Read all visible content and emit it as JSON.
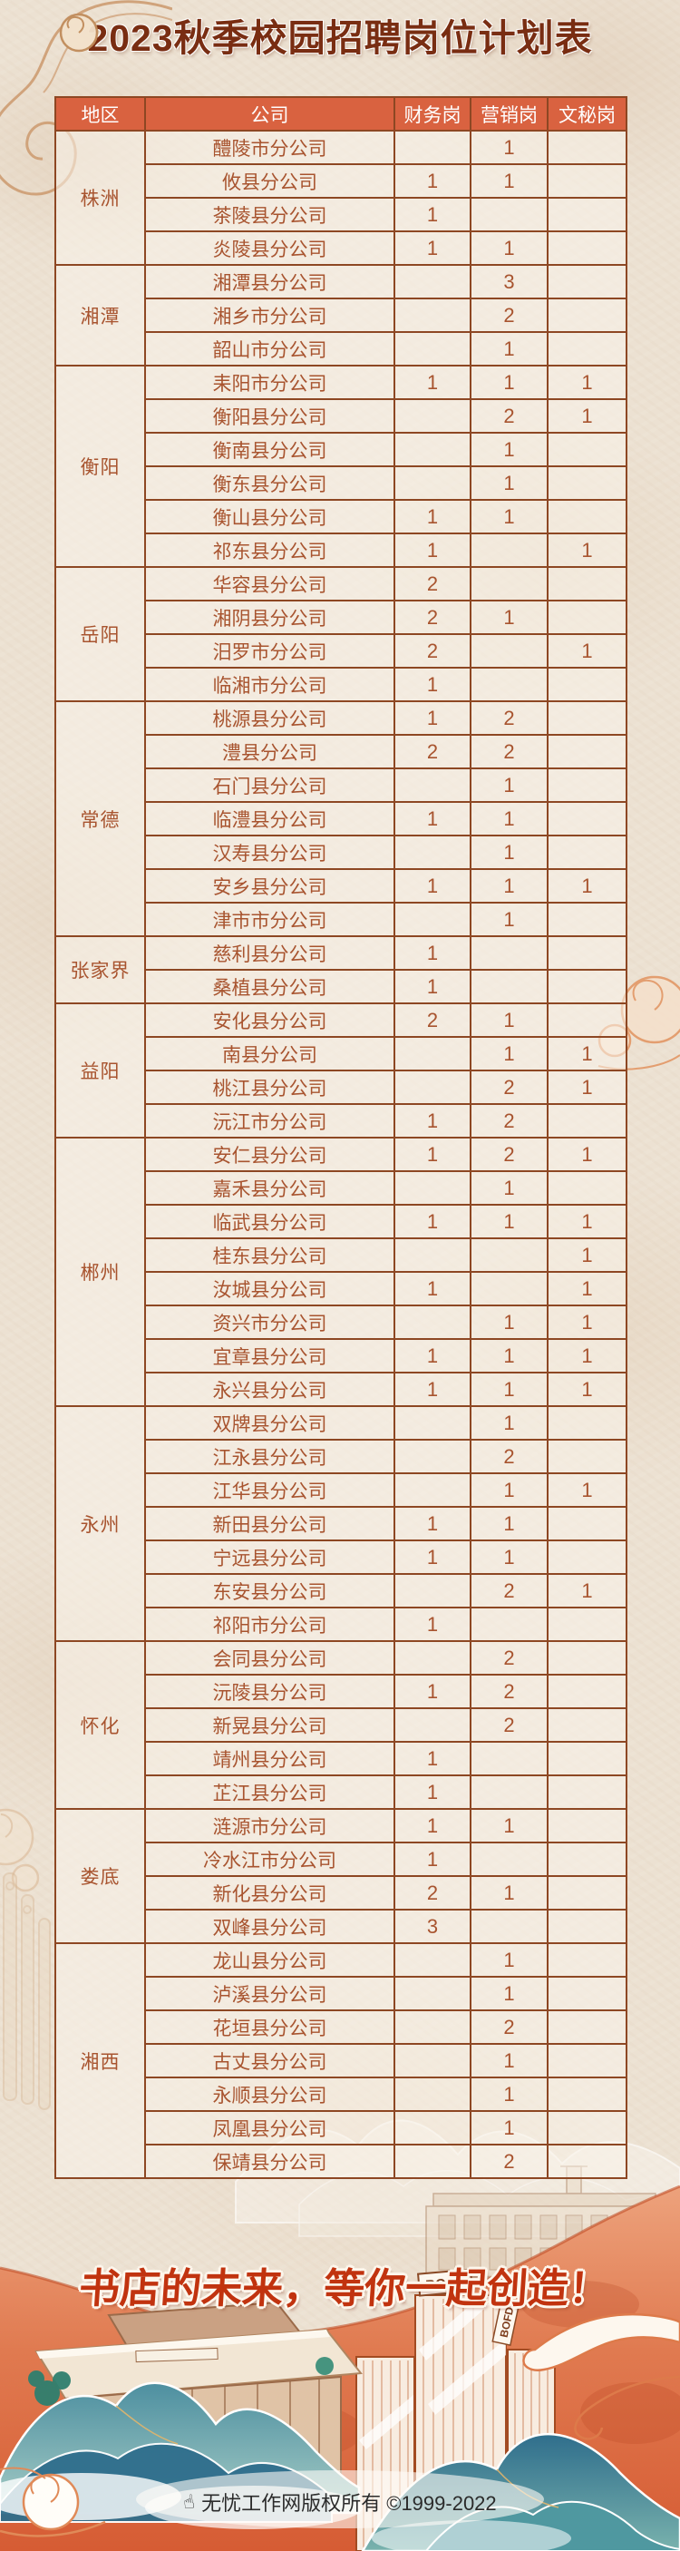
{
  "title": "2023秋季校园招聘岗位计划表",
  "table": {
    "headers": [
      "地区",
      "公司",
      "财务岗",
      "营销岗",
      "文秘岗"
    ],
    "regions": [
      {
        "name": "株洲",
        "companies": [
          {
            "name": "醴陵市分公司",
            "finance": "",
            "marketing": "1",
            "secretary": ""
          },
          {
            "name": "攸县分公司",
            "finance": "1",
            "marketing": "1",
            "secretary": ""
          },
          {
            "name": "茶陵县分公司",
            "finance": "1",
            "marketing": "",
            "secretary": ""
          },
          {
            "name": "炎陵县分公司",
            "finance": "1",
            "marketing": "1",
            "secretary": ""
          }
        ]
      },
      {
        "name": "湘潭",
        "companies": [
          {
            "name": "湘潭县分公司",
            "finance": "",
            "marketing": "3",
            "secretary": ""
          },
          {
            "name": "湘乡市分公司",
            "finance": "",
            "marketing": "2",
            "secretary": ""
          },
          {
            "name": "韶山市分公司",
            "finance": "",
            "marketing": "1",
            "secretary": ""
          }
        ]
      },
      {
        "name": "衡阳",
        "companies": [
          {
            "name": "耒阳市分公司",
            "finance": "1",
            "marketing": "1",
            "secretary": "1"
          },
          {
            "name": "衡阳县分公司",
            "finance": "",
            "marketing": "2",
            "secretary": "1"
          },
          {
            "name": "衡南县分公司",
            "finance": "",
            "marketing": "1",
            "secretary": ""
          },
          {
            "name": "衡东县分公司",
            "finance": "",
            "marketing": "1",
            "secretary": ""
          },
          {
            "name": "衡山县分公司",
            "finance": "1",
            "marketing": "1",
            "secretary": ""
          },
          {
            "name": "祁东县分公司",
            "finance": "1",
            "marketing": "",
            "secretary": "1"
          }
        ]
      },
      {
        "name": "岳阳",
        "companies": [
          {
            "name": "华容县分公司",
            "finance": "2",
            "marketing": "",
            "secretary": ""
          },
          {
            "name": "湘阴县分公司",
            "finance": "2",
            "marketing": "1",
            "secretary": ""
          },
          {
            "name": "汨罗市分公司",
            "finance": "2",
            "marketing": "",
            "secretary": "1"
          },
          {
            "name": "临湘市分公司",
            "finance": "1",
            "marketing": "",
            "secretary": ""
          }
        ]
      },
      {
        "name": "常德",
        "companies": [
          {
            "name": "桃源县分公司",
            "finance": "1",
            "marketing": "2",
            "secretary": ""
          },
          {
            "name": "澧县分公司",
            "finance": "2",
            "marketing": "2",
            "secretary": ""
          },
          {
            "name": "石门县分公司",
            "finance": "",
            "marketing": "1",
            "secretary": ""
          },
          {
            "name": "临澧县分公司",
            "finance": "1",
            "marketing": "1",
            "secretary": ""
          },
          {
            "name": "汉寿县分公司",
            "finance": "",
            "marketing": "1",
            "secretary": ""
          },
          {
            "name": "安乡县分公司",
            "finance": "1",
            "marketing": "1",
            "secretary": "1"
          },
          {
            "name": "津市市分公司",
            "finance": "",
            "marketing": "1",
            "secretary": ""
          }
        ]
      },
      {
        "name": "张家界",
        "companies": [
          {
            "name": "慈利县分公司",
            "finance": "1",
            "marketing": "",
            "secretary": ""
          },
          {
            "name": "桑植县分公司",
            "finance": "1",
            "marketing": "",
            "secretary": ""
          }
        ]
      },
      {
        "name": "益阳",
        "companies": [
          {
            "name": "安化县分公司",
            "finance": "2",
            "marketing": "1",
            "secretary": ""
          },
          {
            "name": "南县分公司",
            "finance": "",
            "marketing": "1",
            "secretary": "1"
          },
          {
            "name": "桃江县分公司",
            "finance": "",
            "marketing": "2",
            "secretary": "1"
          },
          {
            "name": "沅江市分公司",
            "finance": "1",
            "marketing": "2",
            "secretary": ""
          }
        ]
      },
      {
        "name": "郴州",
        "companies": [
          {
            "name": "安仁县分公司",
            "finance": "1",
            "marketing": "2",
            "secretary": "1"
          },
          {
            "name": "嘉禾县分公司",
            "finance": "",
            "marketing": "1",
            "secretary": ""
          },
          {
            "name": "临武县分公司",
            "finance": "1",
            "marketing": "1",
            "secretary": "1"
          },
          {
            "name": "桂东县分公司",
            "finance": "",
            "marketing": "",
            "secretary": "1"
          },
          {
            "name": "汝城县分公司",
            "finance": "1",
            "marketing": "",
            "secretary": "1"
          },
          {
            "name": "资兴市分公司",
            "finance": "",
            "marketing": "1",
            "secretary": "1"
          },
          {
            "name": "宜章县分公司",
            "finance": "1",
            "marketing": "1",
            "secretary": "1"
          },
          {
            "name": "永兴县分公司",
            "finance": "1",
            "marketing": "1",
            "secretary": "1"
          }
        ]
      },
      {
        "name": "永州",
        "companies": [
          {
            "name": "双牌县分公司",
            "finance": "",
            "marketing": "1",
            "secretary": ""
          },
          {
            "name": "江永县分公司",
            "finance": "",
            "marketing": "2",
            "secretary": ""
          },
          {
            "name": "江华县分公司",
            "finance": "",
            "marketing": "1",
            "secretary": "1"
          },
          {
            "name": "新田县分公司",
            "finance": "1",
            "marketing": "1",
            "secretary": ""
          },
          {
            "name": "宁远县分公司",
            "finance": "1",
            "marketing": "1",
            "secretary": ""
          },
          {
            "name": "东安县分公司",
            "finance": "",
            "marketing": "2",
            "secretary": "1"
          },
          {
            "name": "祁阳市分公司",
            "finance": "1",
            "marketing": "",
            "secretary": ""
          }
        ]
      },
      {
        "name": "怀化",
        "companies": [
          {
            "name": "会同县分公司",
            "finance": "",
            "marketing": "2",
            "secretary": ""
          },
          {
            "name": "沅陵县分公司",
            "finance": "1",
            "marketing": "2",
            "secretary": ""
          },
          {
            "name": "新晃县分公司",
            "finance": "",
            "marketing": "2",
            "secretary": ""
          },
          {
            "name": "靖州县分公司",
            "finance": "1",
            "marketing": "",
            "secretary": ""
          },
          {
            "name": "芷江县分公司",
            "finance": "1",
            "marketing": "",
            "secretary": ""
          }
        ]
      },
      {
        "name": "娄底",
        "companies": [
          {
            "name": "涟源市分公司",
            "finance": "1",
            "marketing": "1",
            "secretary": ""
          },
          {
            "name": "冷水江市分公司",
            "finance": "1",
            "marketing": "",
            "secretary": ""
          },
          {
            "name": "新化县分公司",
            "finance": "2",
            "marketing": "1",
            "secretary": ""
          },
          {
            "name": "双峰县分公司",
            "finance": "3",
            "marketing": "",
            "secretary": ""
          }
        ]
      },
      {
        "name": "湘西",
        "companies": [
          {
            "name": "龙山县分公司",
            "finance": "",
            "marketing": "1",
            "secretary": ""
          },
          {
            "name": "泸溪县分公司",
            "finance": "",
            "marketing": "1",
            "secretary": ""
          },
          {
            "name": "花垣县分公司",
            "finance": "",
            "marketing": "2",
            "secretary": ""
          },
          {
            "name": "古丈县分公司",
            "finance": "",
            "marketing": "1",
            "secretary": ""
          },
          {
            "name": "永顺县分公司",
            "finance": "",
            "marketing": "1",
            "secretary": ""
          },
          {
            "name": "凤凰县分公司",
            "finance": "",
            "marketing": "1",
            "secretary": ""
          },
          {
            "name": "保靖县分公司",
            "finance": "",
            "marketing": "2",
            "secretary": ""
          }
        ]
      }
    ]
  },
  "footer": {
    "slogan": "书店的未来，等你一起创造！",
    "building_signs": [
      "BOFO",
      "BOFD"
    ],
    "copyright": "无忧工作网版权所有 ©1999-2022",
    "hand_icon": "☝"
  },
  "colors": {
    "header_bg": "#d96240",
    "table_border": "#8d4723",
    "cell_text": "#a8542f",
    "title_text": "#792d12",
    "slogan_text": "#c1330f",
    "ribbon": "#d85f36",
    "mountain_teal": "#3c7d95"
  }
}
